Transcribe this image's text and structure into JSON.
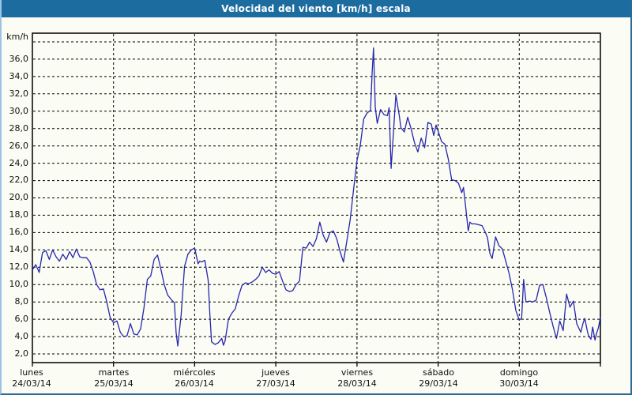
{
  "title": "Velocidad del viento [km/h] escala",
  "y_axis": {
    "unit_label": "km/h",
    "tick_labels": [
      "36,0",
      "34,0",
      "32,0",
      "30,0",
      "28,0",
      "26,0",
      "24,0",
      "22,0",
      "20,0",
      "18,0",
      "16,0",
      "14,0",
      "12,0",
      "10,0",
      "8,0",
      "6,0",
      "4,0",
      "2,0"
    ]
  },
  "x_axis": {
    "days": [
      {
        "name": "lunes",
        "date": "24/03/14"
      },
      {
        "name": "martes",
        "date": "25/03/14"
      },
      {
        "name": "miércoles",
        "date": "26/03/14"
      },
      {
        "name": "jueves",
        "date": "27/03/14"
      },
      {
        "name": "viernes",
        "date": "28/03/14"
      },
      {
        "name": "sábado",
        "date": "29/03/14"
      },
      {
        "name": "domingo",
        "date": "30/03/14"
      }
    ]
  },
  "colors": {
    "title_bar": "#1c6ca0",
    "line": "#2626ae",
    "background": "#fbfcf3",
    "grid": "#000000",
    "frame_light": "#9cc3e5",
    "frame_dark": "#2b6b95",
    "text": "#111111"
  },
  "chart_data": {
    "type": "line",
    "title": "Velocidad del viento [km/h] escala",
    "ylabel": "km/h",
    "xlabel": "",
    "ylim": [
      1,
      39
    ],
    "y_grid_min": 2,
    "y_grid_max": 38,
    "y_grid_step": 2,
    "total_hours": 168,
    "grid": "dashed",
    "legend_position": "none",
    "x_unit": "hours from lunes 24/03/14 00:00",
    "categories": [
      "lunes 24/03/14",
      "martes 25/03/14",
      "miércoles 26/03/14",
      "jueves 27/03/14",
      "viernes 28/03/14",
      "sábado 29/03/14",
      "domingo 30/03/14"
    ],
    "series": [
      {
        "name": "Velocidad del viento (km/h)",
        "points": [
          [
            0,
            11.7
          ],
          [
            1,
            12.3
          ],
          [
            2,
            11.4
          ],
          [
            3,
            13.7
          ],
          [
            4,
            13.9
          ],
          [
            5,
            12.9
          ],
          [
            6,
            14.0
          ],
          [
            7,
            13.2
          ],
          [
            8,
            12.7
          ],
          [
            9,
            13.5
          ],
          [
            10,
            12.9
          ],
          [
            11,
            13.8
          ],
          [
            12,
            13.1
          ],
          [
            13,
            14.1
          ],
          [
            14,
            13.2
          ],
          [
            15,
            13.1
          ],
          [
            16,
            13.1
          ],
          [
            17,
            12.6
          ],
          [
            18,
            11.5
          ],
          [
            19,
            10.0
          ],
          [
            20,
            9.4
          ],
          [
            21,
            9.5
          ],
          [
            22,
            8.0
          ],
          [
            23,
            6.2
          ],
          [
            24,
            5.6
          ],
          [
            25,
            5.8
          ],
          [
            26,
            4.5
          ],
          [
            27,
            4.0
          ],
          [
            28,
            4.1
          ],
          [
            29,
            5.5
          ],
          [
            30,
            4.3
          ],
          [
            31,
            4.2
          ],
          [
            32,
            4.9
          ],
          [
            33,
            7.3
          ],
          [
            34,
            10.6
          ],
          [
            35,
            11.0
          ],
          [
            36,
            12.9
          ],
          [
            37,
            13.4
          ],
          [
            38,
            11.8
          ],
          [
            39,
            10.0
          ],
          [
            40,
            8.8
          ],
          [
            41,
            8.3
          ],
          [
            42,
            7.9
          ],
          [
            42.5,
            4.5
          ],
          [
            43,
            2.9
          ],
          [
            44,
            6.5
          ],
          [
            45,
            12.1
          ],
          [
            46,
            13.5
          ],
          [
            47,
            14.0
          ],
          [
            48,
            14.2
          ],
          [
            49,
            12.4
          ],
          [
            49.5,
            12.7
          ],
          [
            50,
            12.6
          ],
          [
            51,
            12.8
          ],
          [
            52,
            10.5
          ],
          [
            52.5,
            6.5
          ],
          [
            53,
            3.4
          ],
          [
            54,
            3.1
          ],
          [
            55,
            3.3
          ],
          [
            56,
            3.8
          ],
          [
            56.5,
            3.0
          ],
          [
            57,
            3.5
          ],
          [
            58,
            6.0
          ],
          [
            59,
            6.7
          ],
          [
            60,
            7.2
          ],
          [
            61,
            8.7
          ],
          [
            62,
            9.9
          ],
          [
            63,
            10.2
          ],
          [
            64,
            10.1
          ],
          [
            65,
            10.3
          ],
          [
            66,
            10.6
          ],
          [
            67,
            11.0
          ],
          [
            68,
            12.0
          ],
          [
            69,
            11.4
          ],
          [
            70,
            11.7
          ],
          [
            71,
            11.3
          ],
          [
            72,
            11.2
          ],
          [
            73,
            11.5
          ],
          [
            74,
            10.4
          ],
          [
            75,
            9.4
          ],
          [
            76,
            9.2
          ],
          [
            77,
            9.3
          ],
          [
            78,
            10.0
          ],
          [
            79,
            10.4
          ],
          [
            80,
            14.3
          ],
          [
            81,
            14.2
          ],
          [
            82,
            14.9
          ],
          [
            83,
            14.4
          ],
          [
            84,
            15.3
          ],
          [
            85,
            17.2
          ],
          [
            86,
            15.7
          ],
          [
            87,
            14.9
          ],
          [
            88,
            16.0
          ],
          [
            89,
            16.2
          ],
          [
            90,
            15.3
          ],
          [
            91,
            13.8
          ],
          [
            92,
            12.6
          ],
          [
            93,
            15.0
          ],
          [
            94,
            17.5
          ],
          [
            95,
            21.0
          ],
          [
            96,
            24.3
          ],
          [
            97,
            26.1
          ],
          [
            98,
            29.1
          ],
          [
            99,
            29.8
          ],
          [
            100,
            30.1
          ],
          [
            100.5,
            34.5
          ],
          [
            100.9,
            37.3
          ],
          [
            101.4,
            30.5
          ],
          [
            102,
            28.6
          ],
          [
            103,
            30.2
          ],
          [
            104,
            29.6
          ],
          [
            105,
            29.5
          ],
          [
            105.5,
            30.4
          ],
          [
            106.1,
            23.4
          ],
          [
            107.5,
            31.9
          ],
          [
            108.5,
            29.5
          ],
          [
            109,
            28.1
          ],
          [
            110,
            27.6
          ],
          [
            111,
            29.3
          ],
          [
            112,
            28.0
          ],
          [
            113,
            26.4
          ],
          [
            114,
            25.3
          ],
          [
            115,
            26.9
          ],
          [
            116,
            25.8
          ],
          [
            117,
            28.7
          ],
          [
            118,
            28.5
          ],
          [
            118.7,
            27.2
          ],
          [
            119.4,
            28.4
          ],
          [
            120,
            27.7
          ],
          [
            121,
            26.5
          ],
          [
            122,
            26.2
          ],
          [
            123,
            24.5
          ],
          [
            124,
            22.1
          ],
          [
            125,
            22.0
          ],
          [
            126,
            21.7
          ],
          [
            127,
            20.6
          ],
          [
            127.5,
            21.2
          ],
          [
            128,
            19.5
          ],
          [
            128.9,
            16.2
          ],
          [
            129.4,
            17.2
          ],
          [
            130,
            17.0
          ],
          [
            131,
            17.0
          ],
          [
            132,
            16.9
          ],
          [
            133,
            16.8
          ],
          [
            134,
            16.0
          ],
          [
            134.6,
            15.4
          ],
          [
            135.3,
            13.6
          ],
          [
            136,
            13.0
          ],
          [
            137,
            15.5
          ],
          [
            138,
            14.5
          ],
          [
            139,
            14.1
          ],
          [
            140,
            12.7
          ],
          [
            141,
            11.3
          ],
          [
            142,
            9.4
          ],
          [
            143,
            7.0
          ],
          [
            144,
            5.9
          ],
          [
            144.7,
            6.1
          ],
          [
            145.3,
            10.6
          ],
          [
            146,
            8.0
          ],
          [
            147,
            8.1
          ],
          [
            148,
            8.0
          ],
          [
            149,
            8.2
          ],
          [
            150,
            9.9
          ],
          [
            151,
            10.0
          ],
          [
            152,
            8.5
          ],
          [
            153,
            6.8
          ],
          [
            154,
            5.2
          ],
          [
            155,
            3.8
          ],
          [
            156,
            5.8
          ],
          [
            157,
            4.7
          ],
          [
            158,
            8.9
          ],
          [
            159,
            7.4
          ],
          [
            160,
            8.1
          ],
          [
            161,
            5.5
          ],
          [
            162.2,
            4.5
          ],
          [
            162.9,
            5.6
          ],
          [
            163.4,
            6.1
          ],
          [
            164.1,
            4.7
          ],
          [
            164.5,
            4.1
          ],
          [
            165.2,
            3.7
          ],
          [
            165.7,
            5.1
          ],
          [
            166.4,
            3.6
          ],
          [
            166.8,
            4.3
          ],
          [
            167.4,
            5.0
          ],
          [
            168,
            6.2
          ]
        ]
      }
    ]
  }
}
